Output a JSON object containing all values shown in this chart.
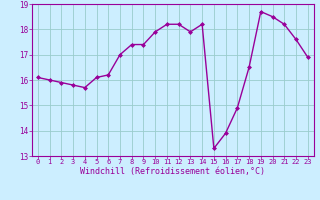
{
  "x": [
    0,
    1,
    2,
    3,
    4,
    5,
    6,
    7,
    8,
    9,
    10,
    11,
    12,
    13,
    14,
    15,
    16,
    17,
    18,
    19,
    20,
    21,
    22,
    23
  ],
  "y": [
    16.1,
    16.0,
    15.9,
    15.8,
    15.7,
    16.1,
    16.2,
    17.0,
    17.4,
    17.4,
    17.9,
    18.2,
    18.2,
    17.9,
    18.2,
    13.3,
    13.9,
    14.9,
    16.5,
    18.7,
    18.5,
    18.2,
    17.6,
    16.9
  ],
  "line_color": "#990099",
  "marker": "D",
  "marker_size": 2.0,
  "bg_color": "#cceeff",
  "grid_color": "#99cccc",
  "xlabel": "Windchill (Refroidissement éolien,°C)",
  "xlabel_color": "#990099",
  "tick_color": "#990099",
  "ylim": [
    13,
    19
  ],
  "xlim_min": -0.5,
  "xlim_max": 23.5,
  "yticks": [
    13,
    14,
    15,
    16,
    17,
    18,
    19
  ],
  "xticks": [
    0,
    1,
    2,
    3,
    4,
    5,
    6,
    7,
    8,
    9,
    10,
    11,
    12,
    13,
    14,
    15,
    16,
    17,
    18,
    19,
    20,
    21,
    22,
    23
  ],
  "linewidth": 1.0,
  "tick_fontsize": 5.0,
  "xlabel_fontsize": 6.0,
  "ytick_fontsize": 5.5
}
